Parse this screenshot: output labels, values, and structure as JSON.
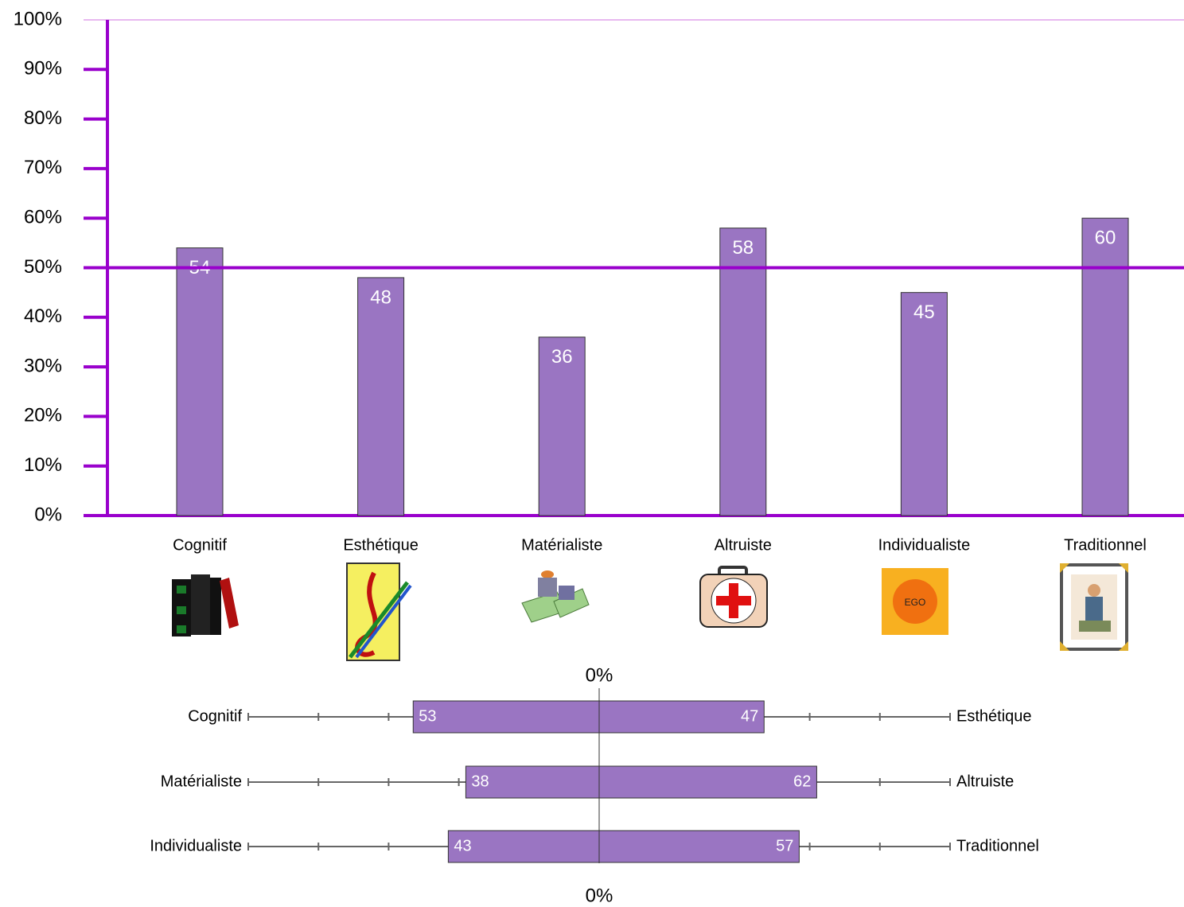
{
  "chart_data": [
    {
      "type": "bar",
      "categories": [
        "Cognitif",
        "Esthétique",
        "Matérialiste",
        "Altruiste",
        "Individualiste",
        "Traditionnel"
      ],
      "values": [
        54,
        48,
        36,
        58,
        45,
        60
      ],
      "color": "#9a75c2",
      "axis_color": "#9900cc",
      "ylim": [
        0,
        100
      ],
      "yticks": [
        {
          "value": 0,
          "label": "0%"
        },
        {
          "value": 10,
          "label": "10%"
        },
        {
          "value": 20,
          "label": "20%"
        },
        {
          "value": 30,
          "label": "30%"
        },
        {
          "value": 40,
          "label": "40%"
        },
        {
          "value": 50,
          "label": "50%"
        },
        {
          "value": 60,
          "label": "60%"
        },
        {
          "value": 70,
          "label": "70%"
        },
        {
          "value": 80,
          "label": "80%"
        },
        {
          "value": 90,
          "label": "90%"
        },
        {
          "value": 100,
          "label": "100%"
        }
      ],
      "reference_line": 50
    },
    {
      "type": "diverging_bar",
      "left_categories": [
        "Cognitif",
        "Matérialiste",
        "Individualiste"
      ],
      "right_categories": [
        "Esthétique",
        "Altruiste",
        "Traditionnel"
      ],
      "left_values": [
        53,
        38,
        43
      ],
      "right_values": [
        47,
        62,
        57
      ],
      "color": "#9a75c2",
      "xlim": [
        0,
        100
      ],
      "zero_tick": {
        "value": 0,
        "label": "0%"
      },
      "xticks": [
        20,
        40,
        60,
        80,
        100
      ]
    }
  ]
}
